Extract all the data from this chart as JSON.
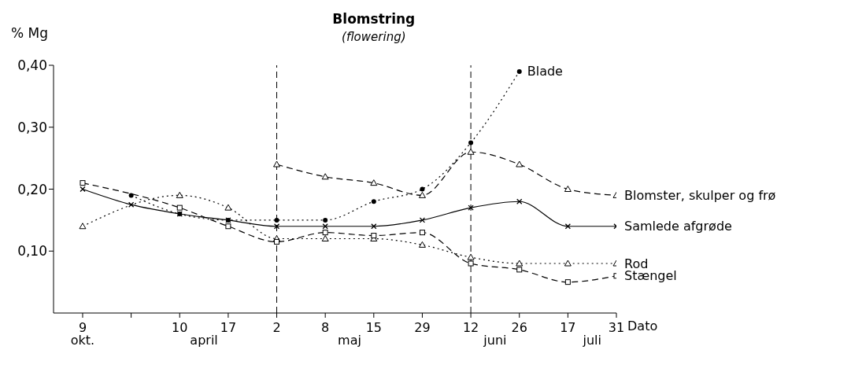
{
  "chart_data": {
    "type": "line",
    "title": "Blomstring",
    "subtitle": "(flowering)",
    "xlabel": "Dato",
    "ylabel": "% Mg",
    "categories": [
      "9",
      null,
      "10",
      "17",
      "2",
      "8",
      "15",
      "29",
      "12",
      "26",
      "17",
      "31"
    ],
    "annotations": [
      "okt.",
      "april",
      "maj",
      "juni",
      "juli"
    ],
    "ylim": [
      0,
      0.4
    ],
    "yticks": [
      {
        "value": 0.1,
        "label": "0,10"
      },
      {
        "value": 0.2,
        "label": "0,20"
      },
      {
        "value": 0.3,
        "label": "0,30"
      },
      {
        "value": 0.4,
        "label": "0,40"
      }
    ],
    "ref_lines": [
      {
        "axis": "x",
        "value": "2",
        "line_style": "dashed",
        "color": "#000000"
      },
      {
        "axis": "x",
        "value": "12",
        "line_style": "dashed",
        "color": "#000000"
      }
    ],
    "series": [
      {
        "name": "Blade",
        "color": "#000000",
        "marker": "circle",
        "line_style": "dotted",
        "values": [
          null,
          0.19,
          0.16,
          0.15,
          0.15,
          0.15,
          0.18,
          0.2,
          0.275,
          0.39,
          null,
          null
        ]
      },
      {
        "name": "Blomster, skulper og frø",
        "color": "#000000",
        "marker": "triangle",
        "line_style": "dashed",
        "values": [
          null,
          null,
          null,
          null,
          0.24,
          0.22,
          0.21,
          0.19,
          0.26,
          0.24,
          0.2,
          0.19
        ]
      },
      {
        "name": "Samlede afgrøde",
        "color": "#000000",
        "marker": "cross",
        "line_style": "solid",
        "values": [
          0.2,
          0.175,
          0.16,
          0.15,
          0.14,
          0.14,
          0.14,
          0.15,
          0.17,
          0.18,
          0.14,
          0.14
        ]
      },
      {
        "name": "Rod",
        "color": "#000000",
        "marker": "triangle",
        "line_style": "dotted",
        "values": [
          0.14,
          null,
          0.19,
          0.17,
          0.12,
          0.12,
          0.12,
          0.11,
          0.09,
          0.08,
          0.08,
          0.08
        ]
      },
      {
        "name": "Stængel",
        "color": "#000000",
        "marker": "square",
        "line_style": "dashed",
        "values": [
          0.21,
          null,
          0.17,
          0.14,
          0.115,
          0.13,
          0.125,
          0.13,
          0.08,
          0.07,
          0.05,
          0.06
        ]
      }
    ]
  }
}
